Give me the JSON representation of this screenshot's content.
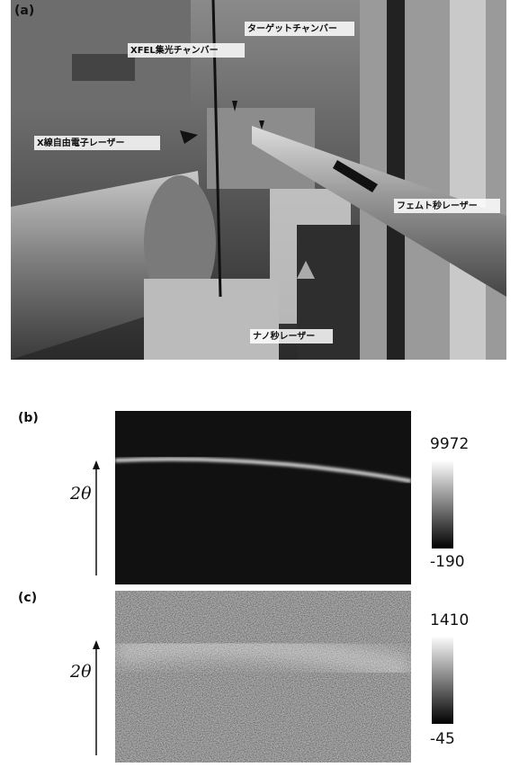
{
  "panel_a": {
    "label": "(a)",
    "annotations": [
      "ターゲットチャンバー",
      "XFEL集光チャンバー",
      "X線自由電子レーザー",
      "フェムト秒レーザー",
      "ナノ秒レーザー"
    ]
  },
  "panel_b": {
    "label": "(b)",
    "axis_label": "2θ",
    "colorbar_max": 9972,
    "colorbar_min": -190
  },
  "panel_c": {
    "label": "(c)",
    "axis_label": "2θ",
    "colorbar_max": 1410,
    "colorbar_min": -45
  }
}
